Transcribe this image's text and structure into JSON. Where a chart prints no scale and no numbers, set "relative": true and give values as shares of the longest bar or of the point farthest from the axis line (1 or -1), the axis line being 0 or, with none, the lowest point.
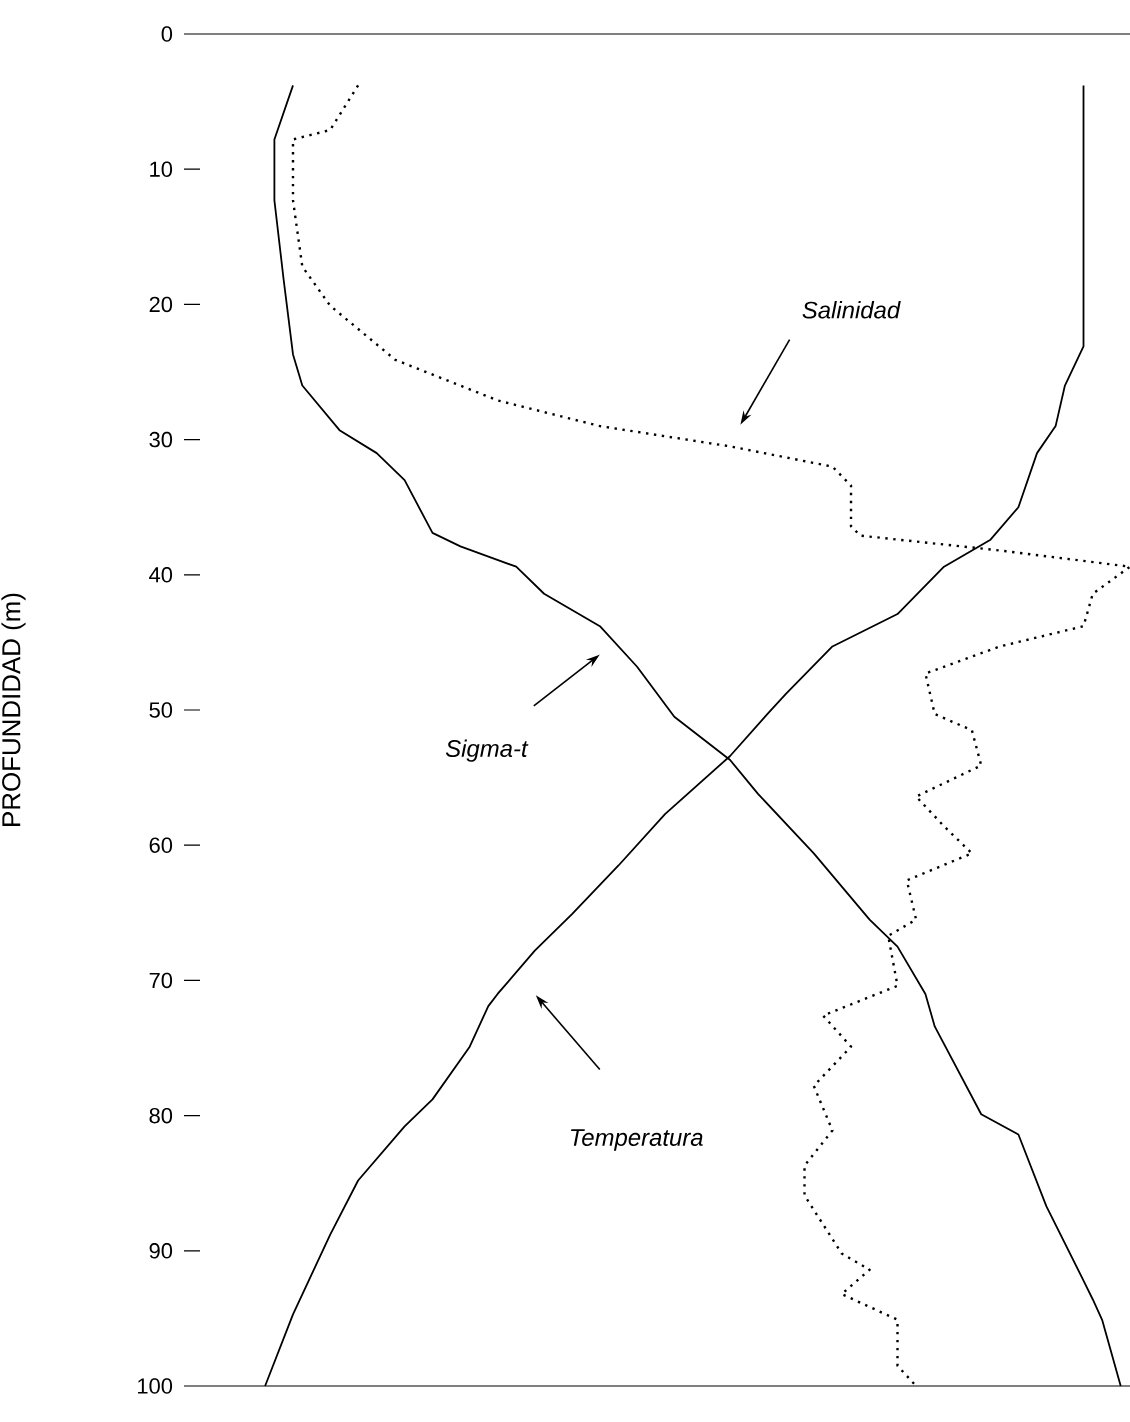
{
  "chart_data": {
    "type": "line",
    "ylabel": "PROFUNDIDAD (m)",
    "relative": true,
    "orientation": "horizontal",
    "ylim": [
      100,
      0
    ],
    "yticks": [
      0,
      10,
      20,
      30,
      40,
      50,
      60,
      70,
      80,
      90,
      100
    ],
    "tick_labels": "y",
    "series": [
      {
        "color": "#000000",
        "line_style": "solid",
        "values": [
          0.1,
          0.08,
          0.08,
          0.09,
          0.1,
          0.11,
          0.15,
          0.19,
          0.22,
          0.25,
          0.28,
          0.34,
          0.37,
          0.43,
          0.47,
          0.51,
          0.57,
          0.6,
          0.66,
          0.72,
          0.75,
          0.78,
          0.79,
          0.84,
          0.88,
          0.91,
          0.95,
          0.96,
          0.97,
          0.99
        ],
        "x": [
          3.8,
          7.8,
          12.3,
          18.2,
          23.7,
          26,
          29.3,
          31,
          33,
          36.9,
          37.9,
          39.4,
          41.4,
          43.8,
          46.8,
          50.5,
          53.7,
          56.2,
          60.6,
          65.5,
          67.5,
          71,
          73.4,
          79.9,
          81.4,
          86.7,
          92.2,
          93.6,
          95.1,
          100
        ]
      },
      {
        "color": "#000000",
        "line_style": "solid",
        "values": [
          0.95,
          0.95,
          0.95,
          0.95,
          0.93,
          0.92,
          0.9,
          0.88,
          0.85,
          0.8,
          0.75,
          0.68,
          0.63,
          0.61,
          0.57,
          0.5,
          0.45,
          0.4,
          0.36,
          0.32,
          0.31,
          0.29,
          0.25,
          0.22,
          0.17,
          0.14,
          0.1,
          0.07
        ],
        "x": [
          3.8,
          7.8,
          17.2,
          23.1,
          26,
          29,
          31,
          35,
          37.4,
          39.4,
          42.9,
          45.3,
          48.8,
          50.3,
          53.4,
          57.7,
          61.5,
          65.1,
          67.8,
          71,
          71.9,
          74.9,
          78.8,
          80.8,
          84.8,
          88.8,
          94.7,
          100
        ]
      },
      {
        "color": "#000000",
        "line_style": "dotted",
        "values": [
          0.17,
          0.14,
          0.1,
          0.1,
          0.11,
          0.14,
          0.21,
          0.32,
          0.43,
          0.57,
          0.68,
          0.7,
          0.7,
          0.71,
          0.86,
          1.0,
          0.96,
          0.95,
          0.86,
          0.78,
          0.79,
          0.83,
          0.84,
          0.77,
          0.8,
          0.83,
          0.76,
          0.77,
          0.74,
          0.75,
          0.67,
          0.7,
          0.66,
          0.68,
          0.65,
          0.65,
          0.69,
          0.72,
          0.69,
          0.75,
          0.75,
          0.77
        ],
        "x": [
          3.8,
          7.1,
          7.8,
          12.3,
          17.2,
          20.1,
          24.1,
          27.1,
          29,
          30.5,
          32,
          33.4,
          36.4,
          37.1,
          38.2,
          39.4,
          41.4,
          43.8,
          45.3,
          47.3,
          50.3,
          51.5,
          54.1,
          56.4,
          58.6,
          60.6,
          62.6,
          65.5,
          66.7,
          70.4,
          72.6,
          74.9,
          77.8,
          81.1,
          83.7,
          85.9,
          90.2,
          91.4,
          93.2,
          95.1,
          98.5,
          100
        ]
      }
    ],
    "annotations": [
      "Salinidad",
      "Sigma-t",
      "Temperatura"
    ]
  }
}
